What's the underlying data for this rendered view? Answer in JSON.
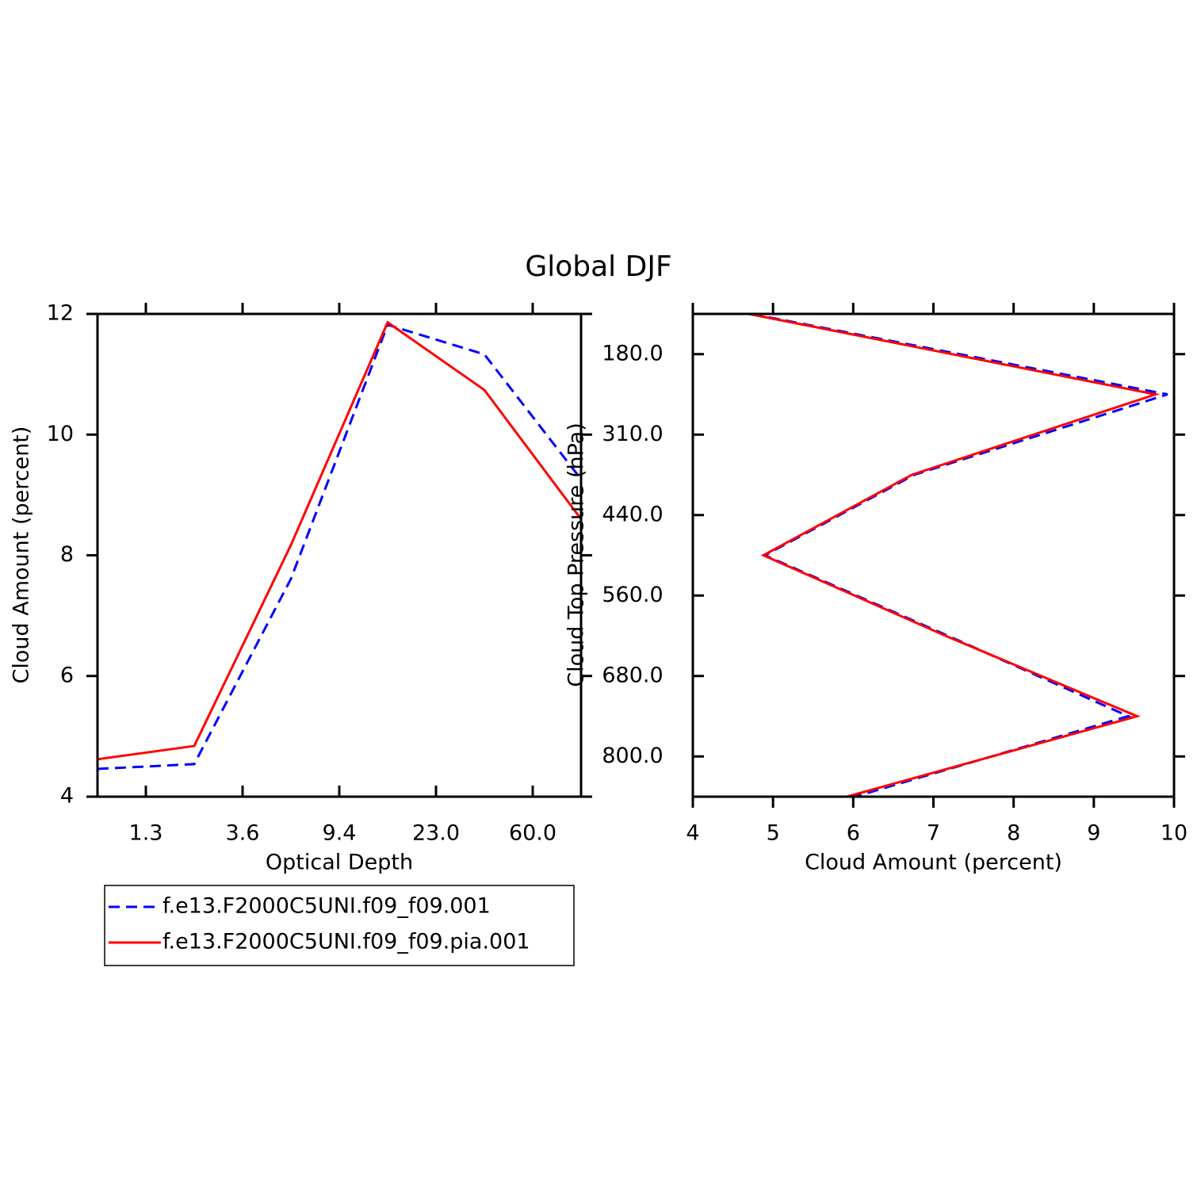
{
  "title": "Global DJF",
  "chart_data": [
    {
      "type": "line",
      "xlabel": "Optical Depth",
      "ylabel": "Cloud Amount (percent)",
      "x": [
        0,
        1,
        2,
        3,
        4,
        5
      ],
      "xlim": [
        0,
        5
      ],
      "xticks": [
        {
          "value": 0.5,
          "label": "1.3"
        },
        {
          "value": 1.5,
          "label": "3.6"
        },
        {
          "value": 2.5,
          "label": "9.4"
        },
        {
          "value": 3.5,
          "label": "23.0"
        },
        {
          "value": 4.5,
          "label": "60.0"
        }
      ],
      "ylim": [
        4,
        12
      ],
      "yticks": [
        4,
        6,
        8,
        10,
        12
      ],
      "series": [
        {
          "name": "f.e13.F2000C5UNI.f09_f09.001",
          "color": "#0000ff",
          "style": "dashed",
          "values": [
            4.46,
            4.54,
            7.61,
            11.82,
            11.33,
            9.26
          ]
        },
        {
          "name": "f.e13.F2000C5UNI.f09_f09.pia.001",
          "color": "#ff0000",
          "style": "solid",
          "values": [
            4.62,
            4.84,
            8.17,
            11.86,
            10.74,
            8.6
          ]
        }
      ]
    },
    {
      "type": "profile",
      "xlabel": "Cloud Amount (percent)",
      "ylabel": "Cloud Top Pressure (hPa)",
      "y": [
        0,
        1,
        2,
        3,
        4,
        5,
        6
      ],
      "ylim": [
        6,
        0
      ],
      "yticks": [
        {
          "value": 0.5,
          "label": "180.0"
        },
        {
          "value": 1.5,
          "label": "310.0"
        },
        {
          "value": 2.5,
          "label": "440.0"
        },
        {
          "value": 3.5,
          "label": "560.0"
        },
        {
          "value": 4.5,
          "label": "680.0"
        },
        {
          "value": 5.5,
          "label": "800.0"
        }
      ],
      "xlim": [
        4,
        10
      ],
      "xticks": [
        4,
        5,
        6,
        7,
        8,
        9,
        10
      ],
      "series": [
        {
          "color": "#0000ff",
          "style": "dashed",
          "values": [
            4.73,
            9.92,
            6.76,
            4.9,
            7.18,
            9.43,
            6.02
          ]
        },
        {
          "color": "#ff0000",
          "style": "solid",
          "values": [
            4.7,
            9.77,
            6.73,
            4.88,
            7.15,
            9.54,
            5.92
          ]
        }
      ]
    }
  ]
}
